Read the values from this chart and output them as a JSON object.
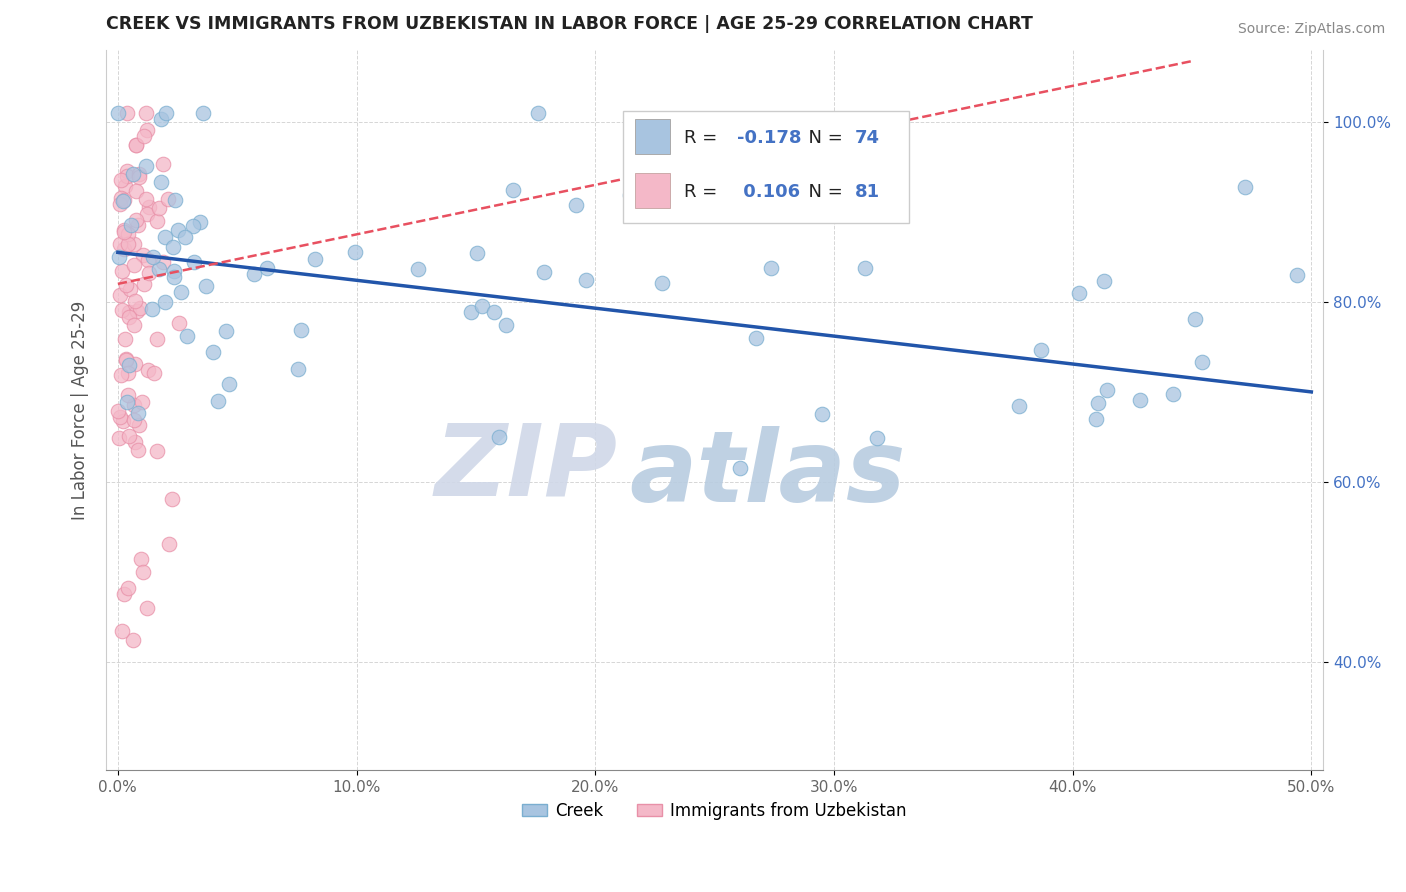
{
  "title": "CREEK VS IMMIGRANTS FROM UZBEKISTAN IN LABOR FORCE | AGE 25-29 CORRELATION CHART",
  "source": "Source: ZipAtlas.com",
  "ylabel": "In Labor Force | Age 25-29",
  "xlim": [
    -0.005,
    0.505
  ],
  "ylim": [
    0.28,
    1.08
  ],
  "xticks": [
    0.0,
    0.1,
    0.2,
    0.3,
    0.4,
    0.5
  ],
  "yticks": [
    0.4,
    0.6,
    0.8,
    1.0
  ],
  "xticklabels": [
    "0.0%",
    "10.0%",
    "20.0%",
    "30.0%",
    "40.0%",
    "50.0%"
  ],
  "yticklabels": [
    "40.0%",
    "60.0%",
    "80.0%",
    "100.0%"
  ],
  "creek_color": "#a8c4e0",
  "creek_edge_color": "#7aaed0",
  "uzbek_color": "#f4b8c8",
  "uzbek_edge_color": "#e890a8",
  "creek_line_color": "#2255aa",
  "uzbek_line_color": "#e85060",
  "creek_R": -0.178,
  "creek_N": 74,
  "uzbek_R": 0.106,
  "uzbek_N": 81,
  "watermark_zip_color": "#d0d8e8",
  "watermark_atlas_color": "#b8cce0",
  "grid_color": "#cccccc",
  "background_color": "#ffffff",
  "title_color": "#222222",
  "ylabel_color": "#555555",
  "tick_color": "#4472c4",
  "source_color": "#888888"
}
